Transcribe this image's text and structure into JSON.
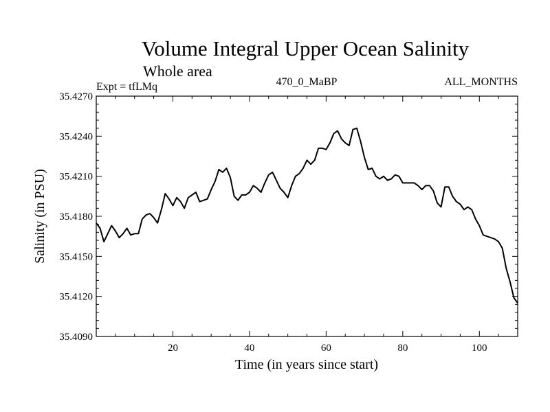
{
  "chart_data": {
    "type": "line",
    "title": "Volume Integral Upper Ocean Salinity",
    "subtitle": "Whole area",
    "experiment_label": "Expt = tfLMq",
    "center_label": "470_0_MaBP",
    "right_label": "ALL_MONTHS",
    "xlabel": "Time (in years since start)",
    "ylabel": "Salinity (in PSU)",
    "xlim": [
      0,
      110
    ],
    "ylim": [
      35.409,
      35.427
    ],
    "x_ticks": [
      20,
      40,
      60,
      80,
      100
    ],
    "x_tick_labels": [
      "20",
      "40",
      "60",
      "80",
      "100"
    ],
    "y_ticks": [
      35.409,
      35.412,
      35.415,
      35.418,
      35.421,
      35.424,
      35.427
    ],
    "y_tick_labels": [
      "35.4090",
      "35.4120",
      "35.4150",
      "35.4180",
      "35.4210",
      "35.4240",
      "35.4270"
    ],
    "grid": false,
    "series": [
      {
        "name": "salinity",
        "x": [
          0,
          1,
          2,
          3,
          4,
          5,
          6,
          7,
          8,
          9,
          10,
          11,
          12,
          13,
          14,
          15,
          16,
          17,
          18,
          19,
          20,
          21,
          22,
          23,
          24,
          25,
          26,
          27,
          28,
          29,
          30,
          31,
          32,
          33,
          34,
          35,
          36,
          37,
          38,
          39,
          40,
          41,
          42,
          43,
          44,
          45,
          46,
          47,
          48,
          49,
          50,
          51,
          52,
          53,
          54,
          55,
          56,
          57,
          58,
          59,
          60,
          61,
          62,
          63,
          64,
          65,
          66,
          67,
          68,
          69,
          70,
          71,
          72,
          73,
          74,
          75,
          76,
          77,
          78,
          79,
          80,
          81,
          82,
          83,
          84,
          85,
          86,
          87,
          88,
          89,
          90,
          91,
          92,
          93,
          94,
          95,
          96,
          97,
          98,
          99,
          100,
          101,
          102,
          103,
          104,
          105,
          106,
          107,
          108,
          109,
          110
        ],
        "values": [
          35.4175,
          35.4171,
          35.4161,
          35.4167,
          35.4173,
          35.4169,
          35.4164,
          35.4167,
          35.4171,
          35.4166,
          35.4167,
          35.4167,
          35.4178,
          35.4181,
          35.4182,
          35.4179,
          35.4175,
          35.4185,
          35.4197,
          35.4193,
          35.4188,
          35.4194,
          35.4191,
          35.4186,
          35.4194,
          35.4196,
          35.4198,
          35.4191,
          35.4192,
          35.4193,
          35.42,
          35.4206,
          35.4215,
          35.4213,
          35.4216,
          35.4209,
          35.4195,
          35.4192,
          35.4196,
          35.4196,
          35.4198,
          35.4203,
          35.4201,
          35.4198,
          35.4205,
          35.4211,
          35.4213,
          35.4207,
          35.4201,
          35.4198,
          35.4194,
          35.4203,
          35.421,
          35.4212,
          35.4216,
          35.4222,
          35.4219,
          35.4222,
          35.4231,
          35.4231,
          35.423,
          35.4235,
          35.4242,
          35.4244,
          35.4238,
          35.4235,
          35.4233,
          35.4245,
          35.4246,
          35.4236,
          35.4224,
          35.4215,
          35.4216,
          35.421,
          35.4208,
          35.421,
          35.4207,
          35.4208,
          35.4211,
          35.421,
          35.4205,
          35.4205,
          35.4205,
          35.4205,
          35.4203,
          35.42,
          35.4203,
          35.4203,
          35.4199,
          35.419,
          35.4187,
          35.4202,
          35.4202,
          35.4195,
          35.4191,
          35.4189,
          35.4185,
          35.4187,
          35.4185,
          35.4178,
          35.4173,
          35.4166,
          35.4165,
          35.4164,
          35.4163,
          35.4161,
          35.4156,
          35.4141,
          35.4131,
          35.4119,
          35.4115
        ]
      }
    ]
  }
}
